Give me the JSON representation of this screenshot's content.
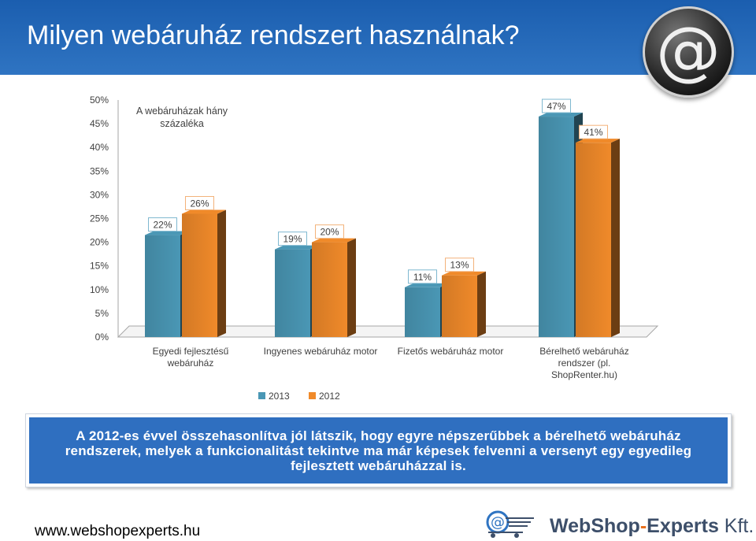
{
  "slide": {
    "title": "Milyen webáruház rendszert használnak?"
  },
  "chart_data": {
    "type": "bar",
    "annotation": "A webáruházak hány százaléka",
    "categories": [
      [
        "Egyedi fejlesztésű",
        "webáruház"
      ],
      [
        "Ingyenes webáruház motor"
      ],
      [
        "Fizetős webáruház motor"
      ],
      [
        "Bérelhető webáruház",
        "rendszer (pl.",
        "ShopRenter.hu)"
      ]
    ],
    "series": [
      {
        "name": "2013",
        "values": [
          22,
          19,
          11,
          47
        ],
        "color": "#4a97b5"
      },
      {
        "name": "2012",
        "values": [
          26,
          20,
          13,
          41
        ],
        "color": "#f08a2a"
      }
    ],
    "data_labels": [
      [
        "22%",
        "19%",
        "11%",
        "47%"
      ],
      [
        "26%",
        "20%",
        "13%",
        "41%"
      ]
    ],
    "ylim": [
      0,
      50
    ],
    "yticks": [
      "0%",
      "5%",
      "10%",
      "15%",
      "20%",
      "25%",
      "30%",
      "35%",
      "40%",
      "45%",
      "50%"
    ],
    "grid": false,
    "legend": "bottom-left"
  },
  "note": {
    "text": "A 2012-es évvel összehasonlítva jól látszik, hogy egyre népszerűbbek a bérelhető webáruház rendszerek, melyek a funkcionalitást tekintve ma már képesek felvenni a versenyt egy egyedileg fejlesztett webáruházzal is."
  },
  "footer": {
    "url": "www.webshopexperts.hu",
    "brand_part1": "WebShop",
    "brand_dash": "-",
    "brand_part2": "Experts",
    "brand_suffix": " Kft."
  },
  "icons": {
    "logo": "at-sign-icon",
    "brand": "shopping-cart-at-icon"
  }
}
